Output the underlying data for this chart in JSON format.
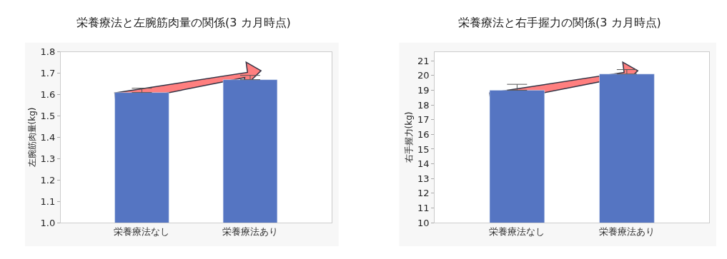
{
  "chart_data": [
    {
      "type": "bar",
      "title": "栄養療法と左腕筋肉量の関係(3 カ月時点)",
      "ylabel": "左腕筋肉量(kg)",
      "categories": [
        "栄養療法なし",
        "栄養療法あり"
      ],
      "values": [
        1.61,
        1.67
      ],
      "errors": [
        [
          1.61,
          1.63
        ],
        [
          1.67,
          1.69
        ]
      ],
      "color": "#5575c2",
      "ylim": [
        1.0,
        1.8
      ],
      "yticks": [
        {
          "value": 1.0,
          "label": "1.0"
        },
        1.1,
        1.2,
        1.3,
        1.4,
        1.5,
        1.6,
        1.7,
        1.8
      ],
      "grid": false,
      "legend": false
    },
    {
      "type": "bar",
      "title": "栄養療法と右手握力の関係(3 カ月時点)",
      "ylabel": "右手握力(kg)",
      "categories": [
        "栄養療法なし",
        "栄養療法あり"
      ],
      "values": [
        19.0,
        20.1
      ],
      "errors": [
        [
          19.0,
          19.4
        ],
        [
          20.1,
          20.4
        ]
      ],
      "color": "#5575c2",
      "ylim": [
        10,
        21.6
      ],
      "yticks": [
        10,
        11,
        12,
        13,
        14,
        15,
        16,
        17,
        18,
        19,
        20,
        21
      ],
      "grid": false,
      "legend": false
    }
  ]
}
